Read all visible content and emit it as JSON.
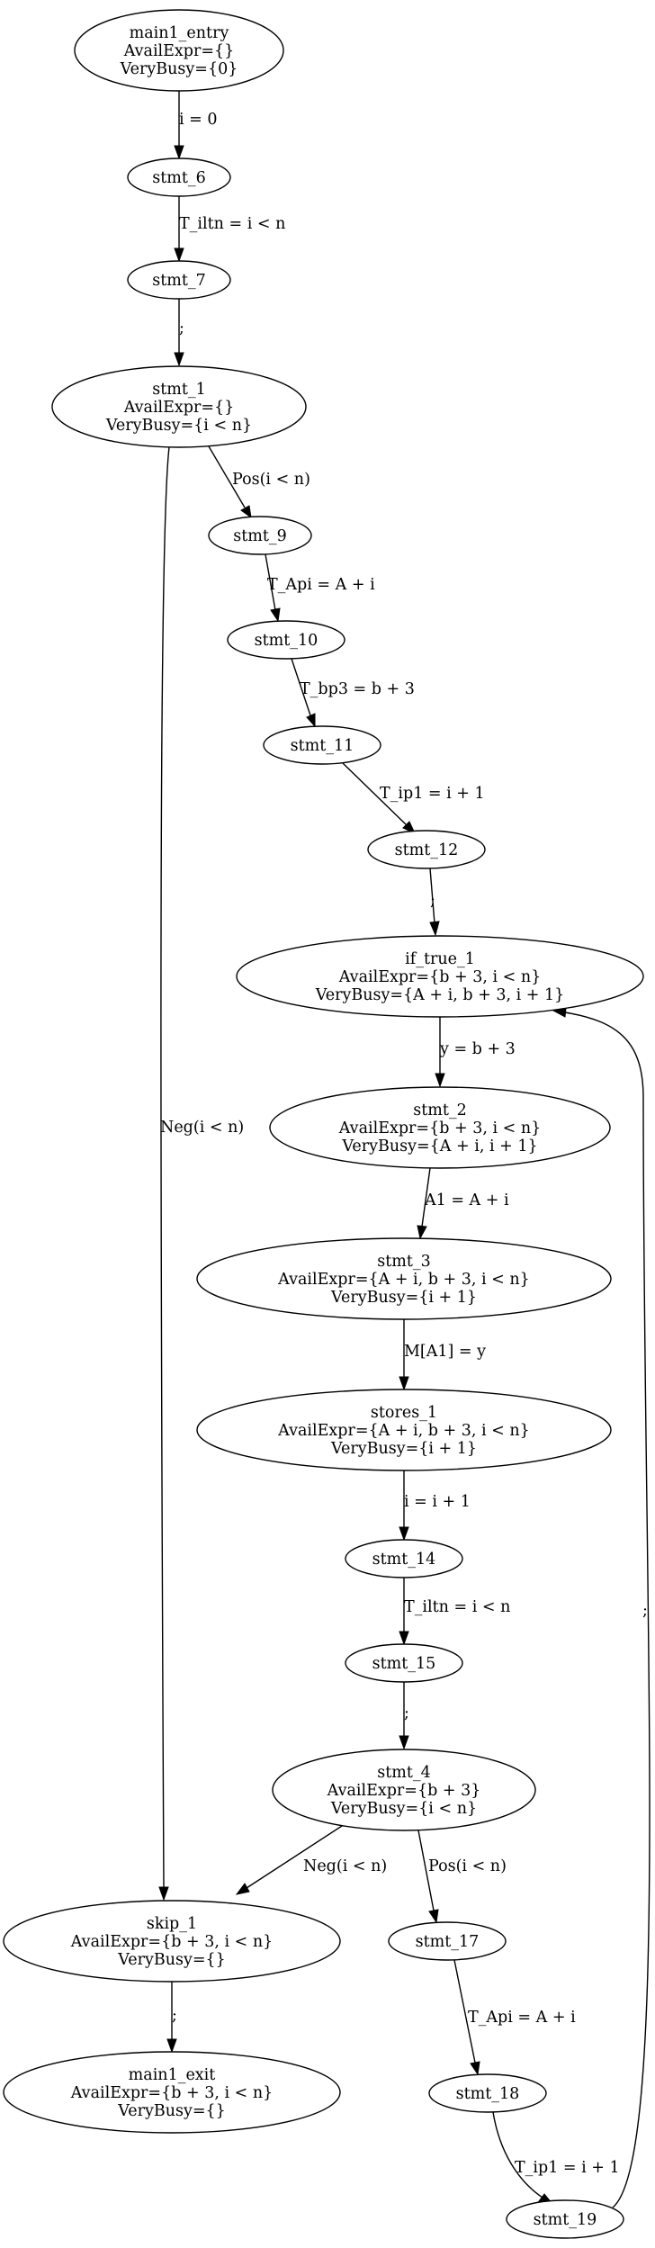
{
  "graph": {
    "nodes": [
      {
        "id": "main1_entry",
        "lines": [
          "main1_entry",
          "AvailExpr={}",
          "VeryBusy={0}"
        ]
      },
      {
        "id": "stmt_6",
        "lines": [
          "stmt_6"
        ]
      },
      {
        "id": "stmt_7",
        "lines": [
          "stmt_7"
        ]
      },
      {
        "id": "stmt_1",
        "lines": [
          "stmt_1",
          "AvailExpr={}",
          "VeryBusy={i < n}"
        ]
      },
      {
        "id": "stmt_9",
        "lines": [
          "stmt_9"
        ]
      },
      {
        "id": "stmt_10",
        "lines": [
          "stmt_10"
        ]
      },
      {
        "id": "stmt_11",
        "lines": [
          "stmt_11"
        ]
      },
      {
        "id": "stmt_12",
        "lines": [
          "stmt_12"
        ]
      },
      {
        "id": "if_true_1",
        "lines": [
          "if_true_1",
          "AvailExpr={b + 3, i < n}",
          "VeryBusy={A + i, b + 3, i + 1}"
        ]
      },
      {
        "id": "stmt_2",
        "lines": [
          "stmt_2",
          "AvailExpr={b + 3, i < n}",
          "VeryBusy={A + i, i + 1}"
        ]
      },
      {
        "id": "stmt_3",
        "lines": [
          "stmt_3",
          "AvailExpr={A + i, b + 3, i < n}",
          "VeryBusy={i + 1}"
        ]
      },
      {
        "id": "stores_1",
        "lines": [
          "stores_1",
          "AvailExpr={A + i, b + 3, i < n}",
          "VeryBusy={i + 1}"
        ]
      },
      {
        "id": "stmt_14",
        "lines": [
          "stmt_14"
        ]
      },
      {
        "id": "stmt_15",
        "lines": [
          "stmt_15"
        ]
      },
      {
        "id": "stmt_4",
        "lines": [
          "stmt_4",
          "AvailExpr={b + 3}",
          "VeryBusy={i < n}"
        ]
      },
      {
        "id": "skip_1",
        "lines": [
          "skip_1",
          "AvailExpr={b + 3, i < n}",
          "VeryBusy={}"
        ]
      },
      {
        "id": "stmt_17",
        "lines": [
          "stmt_17"
        ]
      },
      {
        "id": "main1_exit",
        "lines": [
          "main1_exit",
          "AvailExpr={b + 3, i < n}",
          "VeryBusy={}"
        ]
      },
      {
        "id": "stmt_18",
        "lines": [
          "stmt_18"
        ]
      },
      {
        "id": "stmt_19",
        "lines": [
          "stmt_19"
        ]
      }
    ],
    "edges": [
      {
        "id": "e1",
        "from": "main1_entry",
        "to": "stmt_6",
        "label": "i = 0"
      },
      {
        "id": "e2",
        "from": "stmt_6",
        "to": "stmt_7",
        "label": "T_iltn = i < n"
      },
      {
        "id": "e3",
        "from": "stmt_7",
        "to": "stmt_1",
        "label": ";"
      },
      {
        "id": "e4",
        "from": "stmt_1",
        "to": "stmt_9",
        "label": "Pos(i < n)"
      },
      {
        "id": "e5",
        "from": "stmt_9",
        "to": "stmt_10",
        "label": "T_Api = A + i"
      },
      {
        "id": "e6",
        "from": "stmt_10",
        "to": "stmt_11",
        "label": "T_bp3 = b + 3"
      },
      {
        "id": "e7",
        "from": "stmt_11",
        "to": "stmt_12",
        "label": "T_ip1 = i + 1"
      },
      {
        "id": "e8",
        "from": "stmt_12",
        "to": "if_true_1",
        "label": ";"
      },
      {
        "id": "e9",
        "from": "if_true_1",
        "to": "stmt_2",
        "label": "y = b + 3"
      },
      {
        "id": "e10",
        "from": "stmt_2",
        "to": "stmt_3",
        "label": "A1 = A + i"
      },
      {
        "id": "e11",
        "from": "stmt_3",
        "to": "stores_1",
        "label": "M[A1] = y"
      },
      {
        "id": "e12",
        "from": "stores_1",
        "to": "stmt_14",
        "label": "i = i + 1"
      },
      {
        "id": "e13",
        "from": "stmt_14",
        "to": "stmt_15",
        "label": "T_iltn = i < n"
      },
      {
        "id": "e14",
        "from": "stmt_15",
        "to": "stmt_4",
        "label": ";"
      },
      {
        "id": "e15",
        "from": "stmt_1",
        "to": "skip_1",
        "label": "Neg(i < n)"
      },
      {
        "id": "e16",
        "from": "stmt_4",
        "to": "skip_1",
        "label": "Neg(i < n)"
      },
      {
        "id": "e17",
        "from": "stmt_4",
        "to": "stmt_17",
        "label": "Pos(i < n)"
      },
      {
        "id": "e18",
        "from": "skip_1",
        "to": "main1_exit",
        "label": ";"
      },
      {
        "id": "e19",
        "from": "stmt_17",
        "to": "stmt_18",
        "label": "T_Api = A + i"
      },
      {
        "id": "e20",
        "from": "stmt_18",
        "to": "stmt_19",
        "label": "T_ip1 = i + 1"
      },
      {
        "id": "e21",
        "from": "stmt_19",
        "to": "if_true_1",
        "label": ";"
      }
    ]
  }
}
